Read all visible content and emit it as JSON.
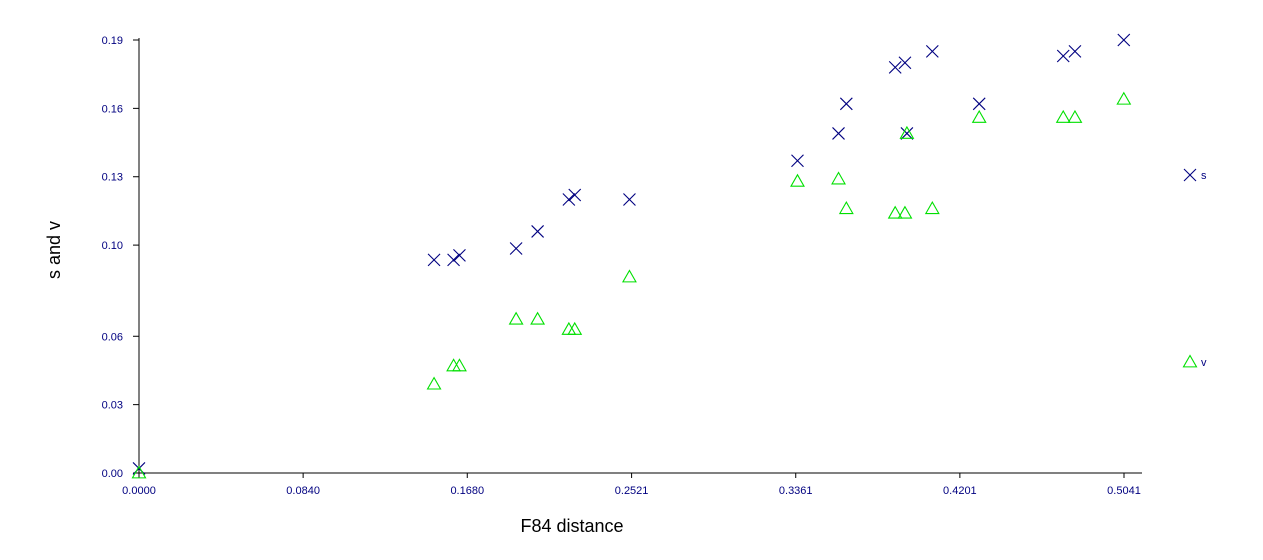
{
  "chart_data": {
    "type": "scatter",
    "title": "",
    "xlabel": "F84 distance",
    "ylabel": "s and v",
    "xlim": [
      0.0,
      0.5041
    ],
    "ylim": [
      0.0,
      0.19
    ],
    "x_ticks": [
      0.0,
      0.084,
      0.168,
      0.2521,
      0.3361,
      0.4201,
      0.5041
    ],
    "x_tick_labels": [
      "0.0000",
      "0.0840",
      "0.1680",
      "0.2521",
      "0.3361",
      "0.4201",
      "0.5041"
    ],
    "y_ticks": [
      0.0,
      0.03,
      0.06,
      0.1,
      0.13,
      0.16,
      0.19
    ],
    "y_tick_labels": [
      "0.00",
      "0.03",
      "0.06",
      "0.10",
      "0.13",
      "0.16",
      "0.19"
    ],
    "grid": false,
    "legend_placement": "right",
    "series": [
      {
        "name": "s",
        "marker": "x",
        "color": "#000080",
        "points": [
          [
            0.0,
            0.002
          ],
          [
            0.151,
            0.0935
          ],
          [
            0.161,
            0.0935
          ],
          [
            0.164,
            0.0955
          ],
          [
            0.193,
            0.0985
          ],
          [
            0.204,
            0.106
          ],
          [
            0.22,
            0.12
          ],
          [
            0.223,
            0.122
          ],
          [
            0.251,
            0.12
          ],
          [
            0.337,
            0.137
          ],
          [
            0.358,
            0.149
          ],
          [
            0.362,
            0.162
          ],
          [
            0.387,
            0.178
          ],
          [
            0.392,
            0.18
          ],
          [
            0.393,
            0.149
          ],
          [
            0.406,
            0.185
          ],
          [
            0.43,
            0.162
          ],
          [
            0.473,
            0.183
          ],
          [
            0.479,
            0.185
          ],
          [
            0.504,
            0.19
          ]
        ]
      },
      {
        "name": "v",
        "marker": "triangle",
        "color": "#00e000",
        "points": [
          [
            0.0,
            0.0
          ],
          [
            0.151,
            0.039
          ],
          [
            0.161,
            0.047
          ],
          [
            0.164,
            0.047
          ],
          [
            0.193,
            0.0675
          ],
          [
            0.204,
            0.0675
          ],
          [
            0.22,
            0.063
          ],
          [
            0.223,
            0.063
          ],
          [
            0.251,
            0.086
          ],
          [
            0.337,
            0.128
          ],
          [
            0.358,
            0.129
          ],
          [
            0.362,
            0.116
          ],
          [
            0.387,
            0.114
          ],
          [
            0.392,
            0.114
          ],
          [
            0.393,
            0.149
          ],
          [
            0.406,
            0.116
          ],
          [
            0.43,
            0.156
          ],
          [
            0.473,
            0.156
          ],
          [
            0.479,
            0.156
          ],
          [
            0.504,
            0.164
          ]
        ]
      }
    ]
  }
}
